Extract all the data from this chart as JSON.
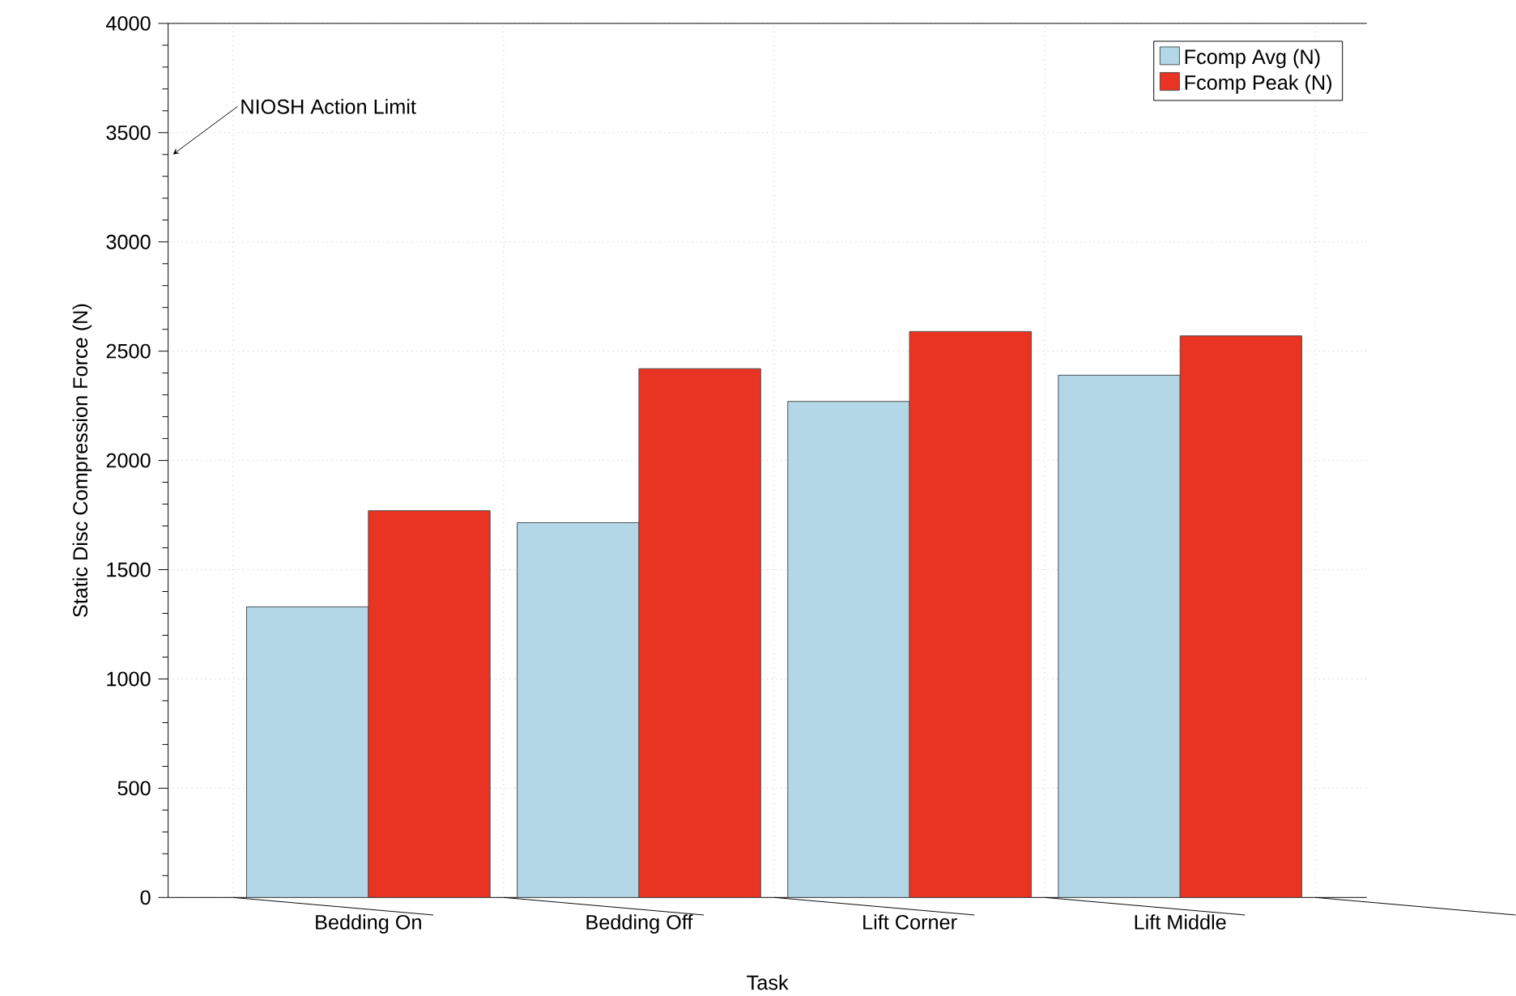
{
  "chart_data": {
    "type": "bar",
    "xlabel": "Task",
    "ylabel": "Static Disc Compression Force (N)",
    "categories": [
      "Bedding On",
      "Bedding Off",
      "Lift Corner",
      "Lift Middle"
    ],
    "series": [
      {
        "name": "Fcomp Avg (N)",
        "color": "#b3d7e6",
        "values": [
          1330,
          1715,
          2270,
          2390
        ]
      },
      {
        "name": "Fcomp Peak (N)",
        "color": "#e93323",
        "values": [
          1770,
          2420,
          2590,
          2570
        ]
      }
    ],
    "ylim": [
      0,
      4000
    ],
    "yticks": [
      0,
      500,
      1000,
      1500,
      2000,
      2500,
      3000,
      3500,
      4000
    ],
    "grid": true,
    "legend": "top right",
    "annotations": [
      "NIOSH Action Limit"
    ]
  }
}
